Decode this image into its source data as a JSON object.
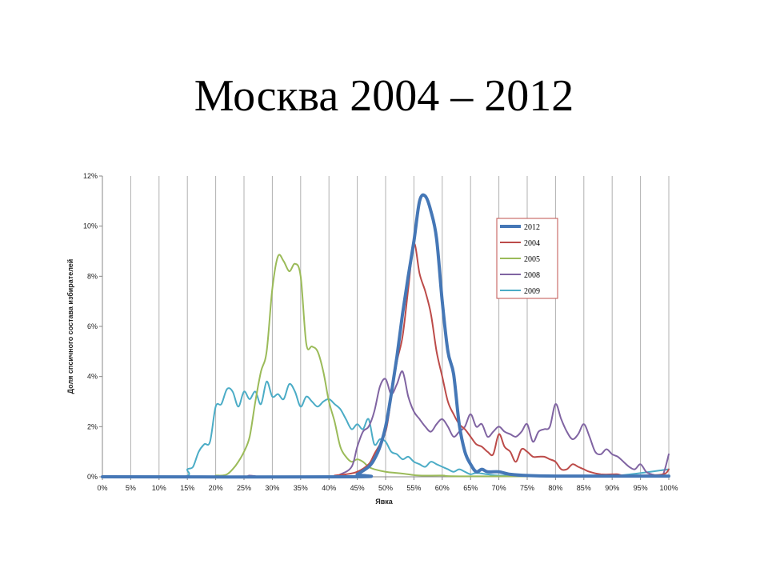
{
  "slide": {
    "title": "Москва 2004 – 2012"
  },
  "chart_data": {
    "type": "line",
    "title": "",
    "xlabel": "Явка",
    "ylabel": "Доля спсичного состава избирателей",
    "xlim": [
      0,
      100
    ],
    "ylim": [
      0,
      12
    ],
    "x_ticks": [
      "0%",
      "5%",
      "10%",
      "15%",
      "20%",
      "25%",
      "30%",
      "35%",
      "40%",
      "45%",
      "50%",
      "55%",
      "60%",
      "65%",
      "70%",
      "75%",
      "80%",
      "85%",
      "90%",
      "95%",
      "100%"
    ],
    "y_ticks": [
      "0%",
      "2%",
      "4%",
      "6%",
      "8%",
      "10%",
      "12%"
    ],
    "grid": "vertical",
    "legend_position": "top-right",
    "series": [
      {
        "name": "2012",
        "color": "#4577b6",
        "width": 4,
        "points": [
          [
            0,
            0
          ],
          [
            44,
            0
          ],
          [
            45,
            0.1
          ],
          [
            47,
            0.4
          ],
          [
            48,
            0.7
          ],
          [
            49,
            1.2
          ],
          [
            50,
            2.0
          ],
          [
            51,
            3.3
          ],
          [
            52,
            4.8
          ],
          [
            53,
            6.5
          ],
          [
            54,
            8.0
          ],
          [
            55,
            9.4
          ],
          [
            56,
            11.0
          ],
          [
            57,
            11.2
          ],
          [
            58,
            10.6
          ],
          [
            59,
            9.5
          ],
          [
            60,
            7.0
          ],
          [
            61,
            5.0
          ],
          [
            62,
            4.1
          ],
          [
            63,
            2.1
          ],
          [
            64,
            1.0
          ],
          [
            65,
            0.5
          ],
          [
            66,
            0.2
          ],
          [
            67,
            0.3
          ],
          [
            68,
            0.2
          ],
          [
            70,
            0.2
          ],
          [
            72,
            0.1
          ],
          [
            75,
            0.05
          ],
          [
            80,
            0.03
          ],
          [
            90,
            0.03
          ],
          [
            100,
            0.03
          ]
        ]
      },
      {
        "name": "2004",
        "color": "#bc4b49",
        "width": 2,
        "points": [
          [
            0,
            0
          ],
          [
            40,
            0
          ],
          [
            41,
            0.05
          ],
          [
            43,
            0.1
          ],
          [
            45,
            0.2
          ],
          [
            47,
            0.5
          ],
          [
            48,
            0.9
          ],
          [
            50,
            1.8
          ],
          [
            51,
            3.2
          ],
          [
            52,
            4.6
          ],
          [
            53,
            5.6
          ],
          [
            54,
            7.5
          ],
          [
            55,
            9.3
          ],
          [
            56,
            8.1
          ],
          [
            57,
            7.4
          ],
          [
            58,
            6.5
          ],
          [
            59,
            5.0
          ],
          [
            60,
            4.0
          ],
          [
            61,
            3.0
          ],
          [
            62,
            2.5
          ],
          [
            63,
            2.1
          ],
          [
            64,
            1.9
          ],
          [
            65,
            1.6
          ],
          [
            66,
            1.3
          ],
          [
            67,
            1.2
          ],
          [
            68,
            1.0
          ],
          [
            69,
            0.9
          ],
          [
            70,
            1.7
          ],
          [
            71,
            1.2
          ],
          [
            72,
            1.0
          ],
          [
            73,
            0.6
          ],
          [
            74,
            1.1
          ],
          [
            75,
            1.0
          ],
          [
            76,
            0.8
          ],
          [
            77,
            0.8
          ],
          [
            78,
            0.8
          ],
          [
            79,
            0.7
          ],
          [
            80,
            0.6
          ],
          [
            81,
            0.3
          ],
          [
            82,
            0.3
          ],
          [
            83,
            0.5
          ],
          [
            84,
            0.4
          ],
          [
            85,
            0.3
          ],
          [
            86,
            0.2
          ],
          [
            88,
            0.1
          ],
          [
            90,
            0.1
          ],
          [
            91,
            0.1
          ],
          [
            92,
            0.05
          ],
          [
            95,
            0.05
          ],
          [
            99,
            0.1
          ],
          [
            100,
            0.3
          ]
        ]
      },
      {
        "name": "2005",
        "color": "#9bbb59",
        "width": 2,
        "points": [
          [
            0,
            0
          ],
          [
            19,
            0
          ],
          [
            20,
            0.05
          ],
          [
            21,
            0.05
          ],
          [
            22,
            0.1
          ],
          [
            23,
            0.3
          ],
          [
            24,
            0.6
          ],
          [
            25,
            1.0
          ],
          [
            26,
            1.6
          ],
          [
            27,
            3.0
          ],
          [
            28,
            4.2
          ],
          [
            29,
            5.0
          ],
          [
            30,
            7.5
          ],
          [
            31,
            8.8
          ],
          [
            32,
            8.6
          ],
          [
            33,
            8.2
          ],
          [
            34,
            8.5
          ],
          [
            35,
            8.0
          ],
          [
            36,
            5.3
          ],
          [
            37,
            5.2
          ],
          [
            38,
            5.0
          ],
          [
            39,
            4.2
          ],
          [
            40,
            3.0
          ],
          [
            41,
            2.2
          ],
          [
            42,
            1.2
          ],
          [
            43,
            0.8
          ],
          [
            44,
            0.6
          ],
          [
            45,
            0.7
          ],
          [
            46,
            0.6
          ],
          [
            47,
            0.4
          ],
          [
            48,
            0.3
          ],
          [
            50,
            0.2
          ],
          [
            52,
            0.15
          ],
          [
            54,
            0.1
          ],
          [
            56,
            0.05
          ],
          [
            60,
            0.05
          ],
          [
            65,
            0.02
          ],
          [
            100,
            0.02
          ]
        ]
      },
      {
        "name": "2008",
        "color": "#8064a2",
        "width": 2,
        "points": [
          [
            0,
            0
          ],
          [
            25,
            0
          ],
          [
            26,
            0.05
          ],
          [
            27,
            0.02
          ],
          [
            40,
            0
          ],
          [
            42,
            0.1
          ],
          [
            44,
            0.4
          ],
          [
            45,
            1.2
          ],
          [
            46,
            1.8
          ],
          [
            47,
            2.0
          ],
          [
            48,
            2.6
          ],
          [
            49,
            3.6
          ],
          [
            50,
            3.9
          ],
          [
            51,
            3.3
          ],
          [
            52,
            3.7
          ],
          [
            53,
            4.2
          ],
          [
            54,
            3.2
          ],
          [
            55,
            2.6
          ],
          [
            56,
            2.3
          ],
          [
            57,
            2.0
          ],
          [
            58,
            1.8
          ],
          [
            59,
            2.1
          ],
          [
            60,
            2.3
          ],
          [
            61,
            2.0
          ],
          [
            62,
            1.6
          ],
          [
            63,
            1.8
          ],
          [
            64,
            2.0
          ],
          [
            65,
            2.5
          ],
          [
            66,
            2.0
          ],
          [
            67,
            2.1
          ],
          [
            68,
            1.6
          ],
          [
            69,
            1.8
          ],
          [
            70,
            2.0
          ],
          [
            71,
            1.8
          ],
          [
            72,
            1.7
          ],
          [
            73,
            1.6
          ],
          [
            74,
            1.8
          ],
          [
            75,
            2.1
          ],
          [
            76,
            1.4
          ],
          [
            77,
            1.8
          ],
          [
            78,
            1.9
          ],
          [
            79,
            2.0
          ],
          [
            80,
            2.9
          ],
          [
            81,
            2.3
          ],
          [
            82,
            1.8
          ],
          [
            83,
            1.5
          ],
          [
            84,
            1.7
          ],
          [
            85,
            2.1
          ],
          [
            86,
            1.6
          ],
          [
            87,
            1.0
          ],
          [
            88,
            0.9
          ],
          [
            89,
            1.1
          ],
          [
            90,
            0.9
          ],
          [
            91,
            0.8
          ],
          [
            92,
            0.6
          ],
          [
            93,
            0.4
          ],
          [
            94,
            0.3
          ],
          [
            95,
            0.5
          ],
          [
            96,
            0.2
          ],
          [
            97,
            0.1
          ],
          [
            98,
            0.05
          ],
          [
            99,
            0.1
          ],
          [
            100,
            0.9
          ]
        ]
      },
      {
        "name": "2009",
        "color": "#4bacc6",
        "width": 2,
        "points": [
          [
            0,
            0
          ],
          [
            14,
            0
          ],
          [
            15,
            0.3
          ],
          [
            16,
            0.4
          ],
          [
            17,
            1.0
          ],
          [
            18,
            1.3
          ],
          [
            19,
            1.4
          ],
          [
            20,
            2.8
          ],
          [
            21,
            2.9
          ],
          [
            22,
            3.5
          ],
          [
            23,
            3.4
          ],
          [
            24,
            2.8
          ],
          [
            25,
            3.4
          ],
          [
            26,
            3.1
          ],
          [
            27,
            3.4
          ],
          [
            28,
            2.9
          ],
          [
            29,
            3.8
          ],
          [
            30,
            3.2
          ],
          [
            31,
            3.3
          ],
          [
            32,
            3.1
          ],
          [
            33,
            3.7
          ],
          [
            34,
            3.4
          ],
          [
            35,
            2.8
          ],
          [
            36,
            3.2
          ],
          [
            37,
            3.0
          ],
          [
            38,
            2.8
          ],
          [
            39,
            3.0
          ],
          [
            40,
            3.1
          ],
          [
            41,
            2.9
          ],
          [
            42,
            2.7
          ],
          [
            43,
            2.3
          ],
          [
            44,
            1.9
          ],
          [
            45,
            2.1
          ],
          [
            46,
            1.9
          ],
          [
            47,
            2.3
          ],
          [
            48,
            1.3
          ],
          [
            49,
            1.5
          ],
          [
            50,
            1.4
          ],
          [
            51,
            1.0
          ],
          [
            52,
            0.9
          ],
          [
            53,
            0.7
          ],
          [
            54,
            0.8
          ],
          [
            55,
            0.6
          ],
          [
            56,
            0.5
          ],
          [
            57,
            0.4
          ],
          [
            58,
            0.6
          ],
          [
            59,
            0.5
          ],
          [
            60,
            0.4
          ],
          [
            61,
            0.3
          ],
          [
            62,
            0.2
          ],
          [
            63,
            0.3
          ],
          [
            64,
            0.2
          ],
          [
            65,
            0.1
          ],
          [
            66,
            0.15
          ],
          [
            68,
            0.1
          ],
          [
            70,
            0.05
          ],
          [
            75,
            0.05
          ],
          [
            80,
            0.03
          ],
          [
            90,
            0.03
          ],
          [
            100,
            0.3
          ]
        ]
      }
    ]
  }
}
